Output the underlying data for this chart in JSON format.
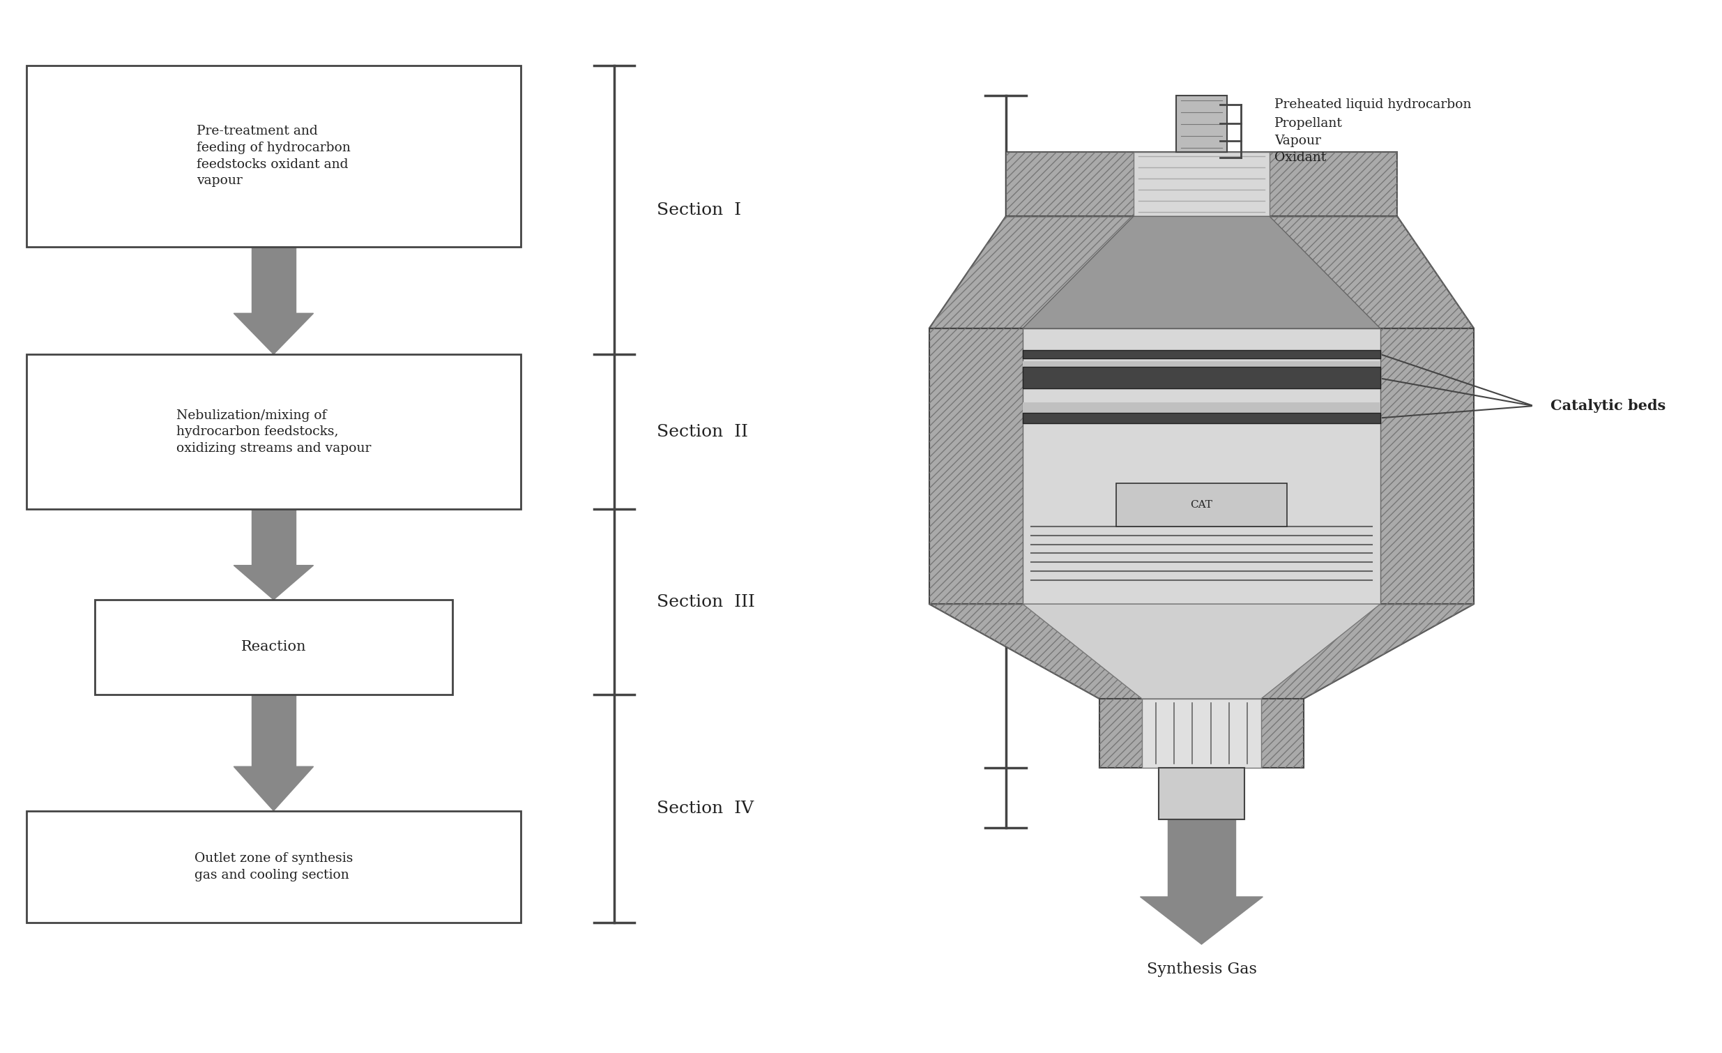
{
  "background_color": "#ffffff",
  "fig_width": 24.7,
  "fig_height": 15.1,
  "box1_text": "Pre-treatment and\nfeeding of hydrocarbon\nfeedstocks oxidant and\nvapour",
  "box2_text": "Nebulization/mixing of\nhydrocarbon feedstocks,\noxidizing streams and vapour",
  "box3_text": "Reaction",
  "box4_text": "Outlet zone of synthesis\ngas and cooling section",
  "section_labels": [
    "Section  I",
    "Section  II",
    "Section  III",
    "Section  IV"
  ],
  "right_labels": [
    "Preheated liquid hydrocarbon",
    "Propellant",
    "Vapour",
    "Oxidant"
  ],
  "catalytic_beds_label": "Catalytic beds",
  "synthesis_gas_label": "Synthesis Gas",
  "brace_color": "#444444",
  "box_edge_color": "#444444",
  "arrow_color": "#888888",
  "hatch_color": "#888888",
  "vessel_outer_color": "#aaaaaa",
  "vessel_inner_color": "#d8d8d8",
  "vessel_dark_color": "#666666",
  "bed_color": "#444444",
  "text_color": "#222222"
}
